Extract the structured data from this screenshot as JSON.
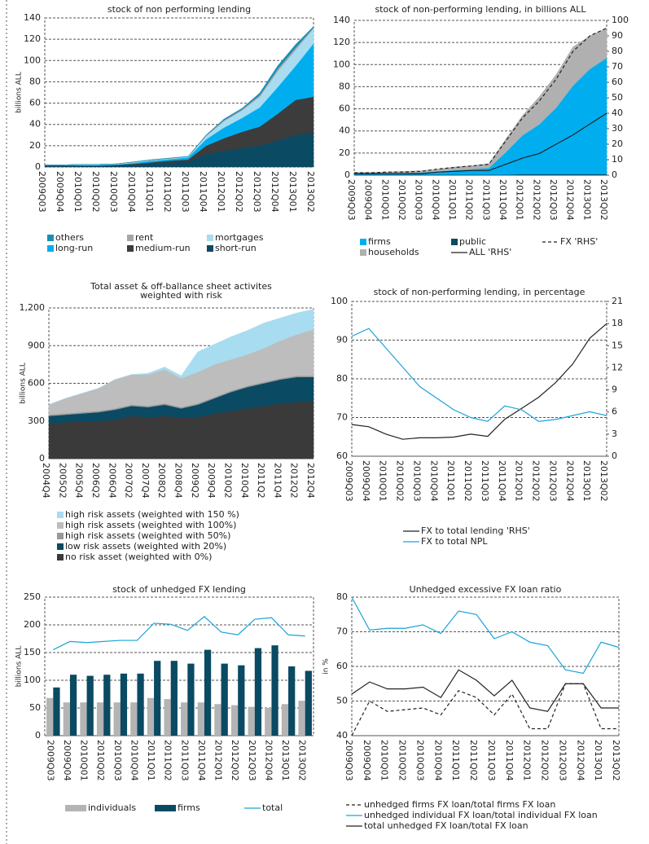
{
  "chart_data": [
    {
      "type": "area",
      "title": "stock of non performing lending",
      "ylabel": "billions ALL",
      "categories": [
        "2009Q03",
        "2009Q04",
        "2010Q01",
        "2010Q02",
        "2010Q03",
        "2010Q04",
        "2011Q01",
        "2011Q02",
        "2011Q03",
        "2011Q04",
        "2012Q01",
        "2012Q02",
        "2012Q03",
        "2012Q04",
        "2013Q01",
        "2013Q02"
      ],
      "series": [
        {
          "name": "short-run",
          "color": "#0a4a63",
          "values": [
            1,
            1,
            1,
            1,
            1,
            2,
            3,
            4,
            5,
            12,
            15,
            18,
            20,
            25,
            30,
            32
          ]
        },
        {
          "name": "medium-run",
          "color": "#3c3c3c",
          "values": [
            0.5,
            0.5,
            0.5,
            0.5,
            1,
            1,
            1.5,
            2,
            2,
            8,
            12,
            15,
            18,
            25,
            33,
            34
          ]
        },
        {
          "name": "long-run",
          "color": "#00aeef",
          "values": [
            0.3,
            0.3,
            0.5,
            0.5,
            0.5,
            1,
            1.5,
            1.5,
            2,
            6,
            10,
            13,
            18,
            25,
            32,
            50
          ]
        },
        {
          "name": "mortgages",
          "color": "#a8dcf0",
          "values": [
            0.2,
            0.2,
            0.5,
            0.5,
            0.5,
            0.5,
            0.5,
            0.5,
            0.5,
            3,
            6,
            7,
            10,
            15,
            15,
            14
          ]
        },
        {
          "name": "rent",
          "color": "#a6a6a6",
          "values": [
            0,
            0,
            0,
            0,
            0,
            0.3,
            0.3,
            0.3,
            0.3,
            0.5,
            1,
            1,
            1.5,
            2,
            2,
            1
          ]
        },
        {
          "name": "others",
          "color": "#1a8fb5",
          "values": [
            0,
            0,
            0,
            0,
            0,
            0.2,
            0.2,
            0.2,
            0.2,
            0.5,
            1,
            1,
            2,
            3,
            3,
            1
          ]
        }
      ],
      "ylim": [
        0,
        140
      ],
      "yticks": [
        0,
        20,
        40,
        60,
        80,
        100,
        120,
        140
      ],
      "grid": true
    },
    {
      "type": "area",
      "title": "stock of non-performing lending, in billions ALL",
      "categories": [
        "2009Q03",
        "2009Q04",
        "2010Q01",
        "2010Q02",
        "2010Q03",
        "2010Q04",
        "2011Q01",
        "2011Q02",
        "2011Q03",
        "2011Q04",
        "2012Q01",
        "2012Q02",
        "2012Q03",
        "2012Q04",
        "2013Q01",
        "2013Q02"
      ],
      "series": [
        {
          "name": "public",
          "color": "#0a4a63",
          "values": [
            0.5,
            0.5,
            0.5,
            0.5,
            0.5,
            0.5,
            0.5,
            0.5,
            0.5,
            0.5,
            1,
            1,
            1,
            1,
            1,
            1
          ]
        },
        {
          "name": "firms",
          "color": "#00aeef",
          "values": [
            1,
            1,
            1.5,
            1.5,
            2,
            3,
            4,
            5,
            6,
            20,
            35,
            45,
            60,
            80,
            95,
            105
          ]
        },
        {
          "name": "households",
          "color": "#b0b0b0",
          "values": [
            1,
            1,
            1,
            1.5,
            1.5,
            2,
            3,
            3,
            4,
            12,
            18,
            25,
            30,
            35,
            30,
            27
          ]
        },
        {
          "name": "FX 'RHS'",
          "color": "#222222",
          "kind": "line",
          "dash": true,
          "axis": "y2",
          "values": [
            1.5,
            1.5,
            2,
            2,
            2.5,
            4,
            5,
            6,
            7,
            22,
            37,
            48,
            62,
            80,
            90,
            95
          ]
        },
        {
          "name": "ALL  'RHS'",
          "color": "#222222",
          "kind": "line",
          "axis": "y2",
          "values": [
            1,
            1,
            1,
            1,
            1,
            2,
            2.5,
            3,
            3,
            7,
            11,
            14,
            20,
            26,
            33,
            40
          ]
        }
      ],
      "ylim": [
        0,
        140
      ],
      "yticks": [
        0,
        20,
        40,
        60,
        80,
        100,
        120,
        140
      ],
      "y2lim": [
        0,
        100
      ],
      "y2ticks": [
        0,
        10,
        20,
        30,
        40,
        50,
        60,
        70,
        80,
        90,
        100
      ],
      "grid": true
    },
    {
      "type": "area",
      "title": [
        "Total asset & off-ballance sheet activites",
        "weighted with risk"
      ],
      "ylabel": "billions ALL",
      "categories": [
        "2004Q4",
        "2005Q2",
        "2005Q4",
        "2006Q2",
        "2006Q4",
        "2007Q2",
        "2007Q4",
        "2008Q2",
        "2008Q4",
        "2009Q2",
        "2009Q4",
        "2010Q2",
        "2010Q4",
        "2011Q2",
        "2011Q4",
        "2012Q2",
        "2012Q4"
      ],
      "series": [
        {
          "name": "no risk asset (weighted with 0%)",
          "color": "#3a3a3a",
          "values": [
            280,
            290,
            300,
            300,
            310,
            340,
            330,
            340,
            330,
            330,
            360,
            380,
            400,
            420,
            440,
            450,
            460
          ]
        },
        {
          "name": "low risk assets (weighted with  20%)",
          "color": "#0a4a63",
          "values": [
            60,
            60,
            60,
            70,
            80,
            80,
            80,
            90,
            70,
            100,
            120,
            150,
            170,
            180,
            190,
            200,
            190
          ]
        },
        {
          "name": "high risk assets (weighted with  50%)",
          "color": "#999999",
          "values": [
            10,
            10,
            10,
            10,
            10,
            10,
            10,
            10,
            10,
            10,
            10,
            10,
            10,
            10,
            10,
            10,
            10
          ]
        },
        {
          "name": "high risk assets (weighted with  100%)",
          "color": "#bdbdbd",
          "values": [
            80,
            120,
            150,
            180,
            230,
            240,
            250,
            270,
            230,
            250,
            260,
            250,
            250,
            270,
            300,
            330,
            370
          ]
        },
        {
          "name": "high risk assets (weighted with 150 %)",
          "color": "#a8dcf0",
          "values": [
            0,
            0,
            0,
            0,
            0,
            0,
            10,
            20,
            20,
            160,
            160,
            180,
            190,
            200,
            180,
            170,
            160
          ]
        }
      ],
      "ylim": [
        0,
        1200
      ],
      "yticks": [
        0,
        300,
        600,
        900,
        {
          "value": 1200,
          "label": "1,200"
        }
      ],
      "grid": true
    },
    {
      "type": "line",
      "title": "stock of non-performing lending, in percentage",
      "categories": [
        "2009Q03",
        "2009Q04",
        "2010Q01",
        "2010Q02",
        "2010Q03",
        "2010Q04",
        "2011Q01",
        "2011Q02",
        "2011Q03",
        "2011Q04",
        "2012Q01",
        "2012Q02",
        "2012Q03",
        "2012Q04",
        "2013Q01",
        "2013Q02"
      ],
      "series": [
        {
          "name": "FX to total lending 'RHS'",
          "color": "#222222",
          "axis": "y2",
          "values": [
            4.3,
            4,
            3,
            2.3,
            2.5,
            2.5,
            2.6,
            3,
            2.7,
            5,
            6.5,
            8,
            10,
            12.5,
            16,
            18
          ]
        },
        {
          "name": "FX to total NPL",
          "color": "#1aa3d9",
          "values": [
            91,
            93,
            88,
            83,
            78,
            75,
            72,
            70,
            69,
            73,
            72,
            69,
            69.5,
            70.5,
            71.5,
            70.5
          ]
        }
      ],
      "ylim": [
        60,
        100
      ],
      "yticks": [
        60,
        70,
        80,
        90,
        100
      ],
      "y2lim": [
        0,
        21
      ],
      "y2ticks": [
        0,
        3,
        6,
        9,
        12,
        15,
        18,
        21
      ],
      "grid": true
    },
    {
      "type": "bar",
      "title": "stock of unhedged FX lending",
      "ylabel": "billions ALL",
      "categories": [
        "2009Q03",
        "2009Q04",
        "2010Q01",
        "2010Q02",
        "2010Q03",
        "2010Q04",
        "2011Q01",
        "2011Q02",
        "2011Q03",
        "2011Q04",
        "2012Q01",
        "2012Q02",
        "2012Q03",
        "2012Q04",
        "2013Q01",
        "2013Q02"
      ],
      "series": [
        {
          "name": "individuals",
          "color": "#b4b4b4",
          "values": [
            68,
            60,
            60,
            60,
            60,
            60,
            68,
            66,
            60,
            60,
            57,
            55,
            52,
            50,
            57,
            63
          ]
        },
        {
          "name": "firms",
          "color": "#0a4a63",
          "values": [
            87,
            110,
            108,
            110,
            112,
            112,
            135,
            135,
            130,
            155,
            130,
            127,
            158,
            163,
            125,
            117
          ]
        },
        {
          "name": "total",
          "color": "#1aa3d9",
          "kind": "line",
          "values": [
            155,
            170,
            168,
            170,
            172,
            172,
            203,
            201,
            190,
            215,
            187,
            182,
            210,
            213,
            182,
            180
          ]
        }
      ],
      "ylim": [
        0,
        250
      ],
      "yticks": [
        0,
        50,
        100,
        150,
        200,
        250
      ],
      "grid": true
    },
    {
      "type": "line",
      "title": "Unhedged excessive FX loan ratio",
      "ylabel": "in %",
      "categories": [
        "2009Q03",
        "2009Q04",
        "2010Q01",
        "2010Q02",
        "2010Q03",
        "2010Q04",
        "2011Q01",
        "2011Q02",
        "2011Q03",
        "2011Q04",
        "2012Q01",
        "2012Q02",
        "2012Q03",
        "2012Q04",
        "2013Q01",
        "2013Q02"
      ],
      "series": [
        {
          "name": "unhedged firms FX loan/total firms FX loan",
          "color": "#222222",
          "dash": true,
          "values": [
            40,
            50,
            47,
            47.5,
            48,
            46,
            53,
            51,
            46,
            52,
            42,
            42,
            55,
            55,
            42,
            42
          ]
        },
        {
          "name": "unhedged individual FX loan/total individual FX loan",
          "color": "#1aa3d9",
          "values": [
            80,
            70.5,
            71,
            71,
            72,
            69.5,
            76,
            75,
            68,
            70,
            67,
            66,
            59,
            58,
            67,
            65.5
          ]
        },
        {
          "name": "total unhedged FX loan/total FX loan",
          "color": "#222222",
          "values": [
            52,
            55.5,
            53.5,
            53.5,
            54,
            51,
            59,
            56,
            51.5,
            56,
            48,
            47,
            55,
            55,
            48,
            48
          ]
        }
      ],
      "ylim": [
        40,
        80
      ],
      "yticks": [
        40,
        50,
        60,
        70,
        80
      ],
      "grid": true
    }
  ]
}
